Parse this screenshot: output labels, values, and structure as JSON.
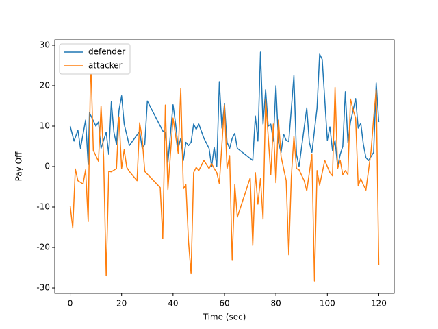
{
  "chart_data": {
    "type": "line",
    "x_label": "Time (sec)",
    "y_label": "Pay Off",
    "xlim": [
      -6,
      126
    ],
    "ylim": [
      -31.35,
      31.35
    ],
    "xticks": [
      0,
      20,
      40,
      60,
      80,
      100,
      120
    ],
    "yticks": [
      -30,
      -20,
      -10,
      0,
      10,
      20,
      30
    ],
    "legend": "upper left",
    "series": [
      {
        "name": "defender",
        "color": "#1f77b4",
        "x": [
          0,
          1.5,
          3,
          4,
          6,
          7,
          7.5,
          10,
          11,
          12,
          14,
          15,
          16,
          17,
          18,
          19,
          20,
          21,
          23,
          27,
          28,
          29,
          30,
          36,
          37,
          38,
          40,
          41,
          42,
          43,
          44,
          45,
          46,
          47,
          48,
          49,
          50,
          52,
          54,
          55,
          56,
          57,
          58,
          59,
          60,
          61,
          62,
          63,
          64,
          65,
          71,
          72,
          73,
          74,
          75,
          76,
          77,
          78,
          79,
          80,
          81,
          82,
          83,
          84,
          85,
          87,
          88,
          89,
          92,
          93,
          94,
          96,
          97,
          98,
          100,
          101,
          102,
          103,
          104,
          105,
          106,
          107,
          108,
          109,
          111,
          112,
          113,
          114,
          115,
          116,
          118,
          119,
          120
        ],
        "values": [
          10,
          6.3,
          9,
          4.5,
          11.5,
          0.5,
          13.3,
          10,
          11,
          4.5,
          8.5,
          3,
          16,
          8.5,
          5.5,
          14,
          17.5,
          10.5,
          5.2,
          8.7,
          4.5,
          5.5,
          16.2,
          8.8,
          8.5,
          1,
          15.3,
          10.5,
          4.5,
          7,
          1.5,
          6,
          5.2,
          6,
          10.5,
          9.2,
          10.5,
          7,
          4.5,
          0,
          4.8,
          0,
          21,
          9.5,
          15.5,
          6,
          4.5,
          7,
          8.2,
          4.5,
          1.5,
          12.5,
          6.3,
          28.3,
          10.5,
          19,
          10,
          10.5,
          6.3,
          20,
          6,
          3.5,
          8,
          6.5,
          6.2,
          22.5,
          3,
          0,
          14.5,
          6,
          3.5,
          14.5,
          27.8,
          26.5,
          6.5,
          9.8,
          4,
          6.5,
          0,
          3,
          5,
          18.5,
          6,
          11,
          16.8,
          9.5,
          10.7,
          5.5,
          2.2,
          1.5,
          3.5,
          20.7,
          11
        ]
      },
      {
        "name": "attacker",
        "color": "#ff7f0e",
        "x": [
          0,
          1,
          2,
          3,
          5,
          6,
          7,
          8,
          9,
          11,
          12,
          13,
          14,
          15,
          16,
          18,
          19,
          20,
          21,
          22,
          23,
          26,
          27,
          28,
          29,
          35,
          36,
          37,
          38,
          40,
          42,
          43,
          44,
          45,
          46,
          47,
          48,
          49,
          50,
          52,
          54,
          55,
          56,
          57,
          58,
          60,
          61,
          62,
          63,
          64,
          65,
          70,
          71,
          72,
          73,
          74,
          75,
          76,
          77,
          78,
          79,
          80,
          81,
          82,
          84,
          85,
          86,
          87,
          88,
          89,
          91,
          92,
          94,
          95,
          96,
          97,
          99,
          101,
          102,
          103,
          104,
          105,
          106,
          107,
          108,
          109,
          110,
          111,
          112,
          113,
          114,
          115,
          117,
          118,
          119,
          120
        ],
        "values": [
          -9.7,
          -15.2,
          -0.6,
          -3.5,
          -4.3,
          -0.8,
          -13.6,
          27,
          4,
          1.3,
          15,
          2.3,
          -27,
          -1.2,
          -1.3,
          -0.5,
          12.3,
          -0.5,
          4.2,
          -0.2,
          -1.2,
          -3.5,
          10.8,
          7,
          -1.2,
          -5.2,
          -17.8,
          15.2,
          -5.7,
          12,
          3.3,
          19.3,
          -5.5,
          -4.5,
          -18.5,
          -26.5,
          -1.5,
          -0.2,
          -1,
          1.5,
          -0.5,
          0.7,
          -0.5,
          -1.5,
          -4.2,
          15.2,
          -0.5,
          2.7,
          -23.2,
          -4.5,
          -12.5,
          -2.8,
          -19.5,
          -1.5,
          -9.3,
          -3,
          -13,
          16.5,
          7.5,
          -2,
          10.5,
          -4,
          11.5,
          2.5,
          -3.5,
          -21.8,
          -2.5,
          7.5,
          -0.5,
          -0.8,
          -3.5,
          -6,
          3,
          -28.3,
          -1,
          -4.6,
          1.5,
          -1.5,
          -2.3,
          19.6,
          -0.5,
          1.5,
          -2,
          -1,
          -2,
          16.7,
          14,
          12,
          -4.8,
          -3,
          -4.5,
          -5.8,
          3.8,
          12,
          19,
          -24.3
        ]
      }
    ]
  }
}
